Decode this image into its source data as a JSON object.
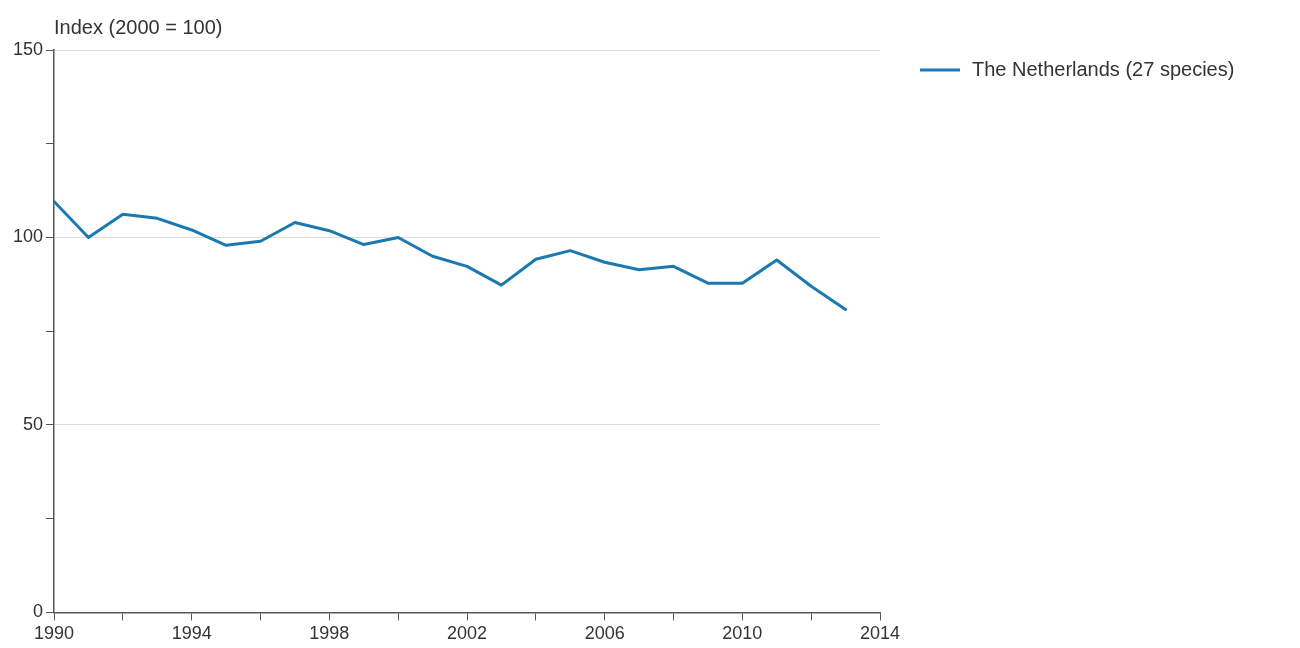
{
  "chart_data": {
    "type": "line",
    "ylabel": "Index (2000 = 100)",
    "x": [
      1990,
      1991,
      1992,
      1993,
      1994,
      1995,
      1996,
      1997,
      1998,
      1999,
      2000,
      2001,
      2002,
      2003,
      2004,
      2005,
      2006,
      2007,
      2008,
      2009,
      2010,
      2011,
      2012,
      2013
    ],
    "series": [
      {
        "name": "The Netherlands (27 species)",
        "color": "#1a7ab0",
        "values": [
          109.6,
          100,
          106.2,
          105.1,
          102,
          97.9,
          99,
          104,
          101.8,
          98.1,
          100,
          95,
          92.3,
          87.3,
          94.2,
          96.5,
          93.4,
          91.4,
          92.3,
          87.8,
          87.8,
          94,
          87,
          80.8
        ]
      }
    ],
    "xlim": [
      1990,
      2014
    ],
    "xticks": [
      1990,
      {
        "value": 1992,
        "label": null
      },
      1994,
      {
        "value": 1996,
        "label": null
      },
      1998,
      {
        "value": 2000,
        "label": null
      },
      2002,
      {
        "value": 2004,
        "label": null
      },
      2006,
      {
        "value": 2008,
        "label": null
      },
      2010,
      {
        "value": 2012,
        "label": null
      },
      2014
    ],
    "ylim": [
      0,
      150
    ],
    "yticks": [
      0,
      {
        "value": 25,
        "label": null
      },
      50,
      {
        "value": 75,
        "label": null
      },
      100,
      {
        "value": 125,
        "label": null
      },
      150
    ],
    "grid": "y",
    "legend": "top right",
    "marker": "none",
    "line_style": "solid"
  }
}
